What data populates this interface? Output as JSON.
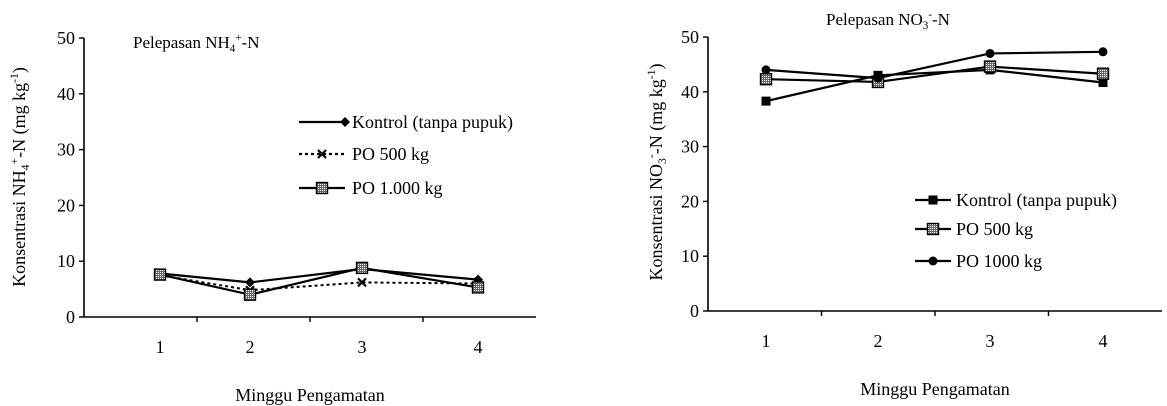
{
  "chart_data": [
    {
      "type": "line",
      "title": {
        "base": "Pelepasan NH",
        "sub": "4",
        "sup": "+",
        "tail": "-N"
      },
      "xlabel": "Minggu Pengamatan",
      "ylabel": {
        "base": "Konsentrasi NH",
        "sub": "4",
        "sup": "+",
        "tail": "-N (mg kg",
        "sup2": "-1",
        "end": ")"
      },
      "categories": [
        "1",
        "2",
        "3",
        "4"
      ],
      "ylim": [
        0,
        50
      ],
      "yticks": [
        "0",
        "10",
        "20",
        "30",
        "40",
        "50"
      ],
      "grid": false,
      "legend_position": "right",
      "series": [
        {
          "name": "Kontrol (tanpa pupuk)",
          "values": [
            7.8,
            6.2,
            8.6,
            6.7
          ],
          "marker": "diamond",
          "dash": false
        },
        {
          "name": "PO 500 kg",
          "values": [
            7.5,
            4.8,
            6.2,
            6.0
          ],
          "marker": "x",
          "dash": true
        },
        {
          "name": "PO 1.000 kg",
          "values": [
            7.6,
            4.0,
            8.8,
            5.3
          ],
          "marker": "square-pattern",
          "dash": false
        }
      ]
    },
    {
      "type": "line",
      "title": {
        "base": "Pelepasan NO",
        "sub": "3",
        "sup": "-",
        "tail": "-N"
      },
      "xlabel": "Minggu Pengamatan",
      "ylabel": {
        "base": "Konsentrasi NO",
        "sub": "3",
        "sup": "-",
        "tail": "-N (mg kg",
        "sup2": "-1",
        "end": ")"
      },
      "categories": [
        "1",
        "2",
        "3",
        "4"
      ],
      "ylim": [
        0,
        50
      ],
      "yticks": [
        "0",
        "10",
        "20",
        "30",
        "40",
        "50"
      ],
      "grid": false,
      "legend_position": "bottom-right",
      "series": [
        {
          "name": "Kontrol (tanpa pupuk)",
          "values": [
            38.3,
            43.0,
            44.0,
            41.7
          ],
          "marker": "square",
          "dash": false
        },
        {
          "name": "PO 500 kg",
          "values": [
            42.3,
            41.8,
            44.6,
            43.3
          ],
          "marker": "square-pattern",
          "dash": false
        },
        {
          "name": "PO 1000 kg",
          "values": [
            44.0,
            42.5,
            47.0,
            47.3
          ],
          "marker": "circle",
          "dash": false
        }
      ]
    }
  ]
}
